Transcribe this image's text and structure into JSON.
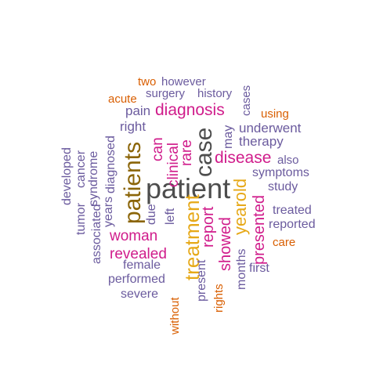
{
  "colors": {
    "dark": "#4d4d4d",
    "brown": "#8b6508",
    "gold": "#e6a817",
    "magenta": "#d01c8b",
    "purple": "#6b5b9e",
    "orange": "#d95f02"
  },
  "words": [
    {
      "text": "patient",
      "color": "dark"
    },
    {
      "text": "case",
      "color": "dark"
    },
    {
      "text": "patients",
      "color": "brown"
    },
    {
      "text": "treatment",
      "color": "gold"
    },
    {
      "text": "yearold",
      "color": "gold"
    },
    {
      "text": "diagnosis",
      "color": "magenta"
    },
    {
      "text": "disease",
      "color": "magenta"
    },
    {
      "text": "woman",
      "color": "magenta"
    },
    {
      "text": "revealed",
      "color": "magenta"
    },
    {
      "text": "presented",
      "color": "magenta"
    },
    {
      "text": "report",
      "color": "magenta"
    },
    {
      "text": "showed",
      "color": "magenta"
    },
    {
      "text": "clinical",
      "color": "magenta"
    },
    {
      "text": "rare",
      "color": "magenta"
    },
    {
      "text": "can",
      "color": "magenta"
    },
    {
      "text": "rights",
      "color": "orange"
    },
    {
      "text": "without",
      "color": "orange"
    },
    {
      "text": "care",
      "color": "orange"
    },
    {
      "text": "using",
      "color": "orange"
    },
    {
      "text": "acute",
      "color": "orange"
    },
    {
      "text": "two",
      "color": "orange"
    },
    {
      "text": "however",
      "color": "purple"
    },
    {
      "text": "surgery",
      "color": "purple"
    },
    {
      "text": "history",
      "color": "purple"
    },
    {
      "text": "cases",
      "color": "purple"
    },
    {
      "text": "pain",
      "color": "purple"
    },
    {
      "text": "right",
      "color": "purple"
    },
    {
      "text": "may",
      "color": "purple"
    },
    {
      "text": "underwent",
      "color": "purple"
    },
    {
      "text": "therapy",
      "color": "purple"
    },
    {
      "text": "also",
      "color": "purple"
    },
    {
      "text": "symptoms",
      "color": "purple"
    },
    {
      "text": "study",
      "color": "purple"
    },
    {
      "text": "treated",
      "color": "purple"
    },
    {
      "text": "reported",
      "color": "purple"
    },
    {
      "text": "first",
      "color": "purple"
    },
    {
      "text": "months",
      "color": "purple"
    },
    {
      "text": "present",
      "color": "purple"
    },
    {
      "text": "female",
      "color": "purple"
    },
    {
      "text": "performed",
      "color": "purple"
    },
    {
      "text": "severe",
      "color": "purple"
    },
    {
      "text": "left",
      "color": "purple"
    },
    {
      "text": "due",
      "color": "purple"
    },
    {
      "text": "years",
      "color": "purple"
    },
    {
      "text": "diagnosed",
      "color": "purple"
    },
    {
      "text": "syndrome",
      "color": "purple"
    },
    {
      "text": "associated",
      "color": "purple"
    },
    {
      "text": "cancer",
      "color": "purple"
    },
    {
      "text": "tumor",
      "color": "purple"
    },
    {
      "text": "developed",
      "color": "purple"
    }
  ]
}
